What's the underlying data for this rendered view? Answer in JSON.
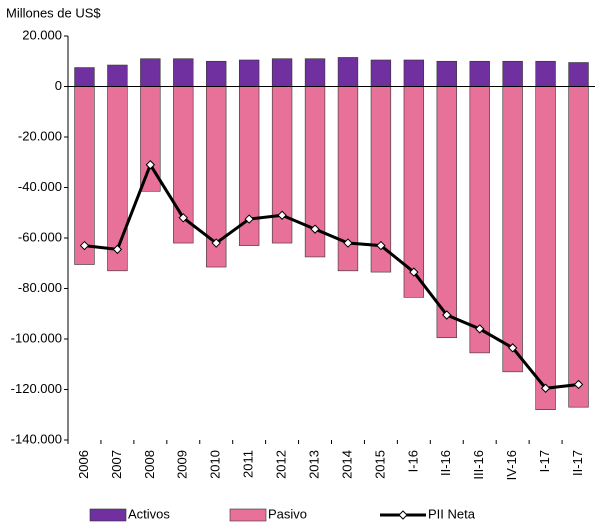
{
  "chart_data": {
    "type": "bar",
    "y_axis_label": "Millones de US$",
    "categories": [
      "2006",
      "2007",
      "2008",
      "2009",
      "2010",
      "2011",
      "2012",
      "2013",
      "2014",
      "2015",
      "I-16",
      "II-16",
      "III-16",
      "IV-16",
      "I-17",
      "II-17"
    ],
    "series": [
      {
        "name": "Activos",
        "type": "bar",
        "color": "#7030a0",
        "values": [
          7500,
          8500,
          11000,
          11000,
          10000,
          10500,
          11000,
          11000,
          11500,
          10500,
          10500,
          10000,
          10000,
          10000,
          10000,
          9500
        ]
      },
      {
        "name": "Pasivo",
        "type": "bar",
        "color": "#e8719a",
        "values": [
          -70500,
          -73000,
          -41500,
          -62000,
          -71500,
          -63000,
          -62000,
          -67500,
          -73000,
          -73500,
          -83500,
          -99500,
          -105500,
          -113000,
          -128000,
          -127000
        ]
      },
      {
        "name": "PII Neta",
        "type": "line",
        "color": "#000000",
        "values": [
          -63000,
          -64500,
          -31000,
          -52000,
          -62000,
          -52500,
          -51000,
          -56500,
          -62000,
          -63000,
          -73500,
          -90500,
          -96000,
          -103500,
          -119500,
          -118000
        ]
      }
    ],
    "ylim": [
      -140000,
      20000
    ],
    "yticks": [
      {
        "value": 20000,
        "label": "20.000"
      },
      0,
      {
        "value": -20000,
        "label": "-20.000"
      },
      {
        "value": -40000,
        "label": "-40.000"
      },
      {
        "value": -60000,
        "label": "-60.000"
      },
      {
        "value": -80000,
        "label": "-80.000"
      },
      {
        "value": -100000,
        "label": "-100.000"
      },
      {
        "value": -120000,
        "label": "-120.000"
      },
      {
        "value": -140000,
        "label": "-140.000"
      }
    ],
    "legend": "bottom"
  }
}
